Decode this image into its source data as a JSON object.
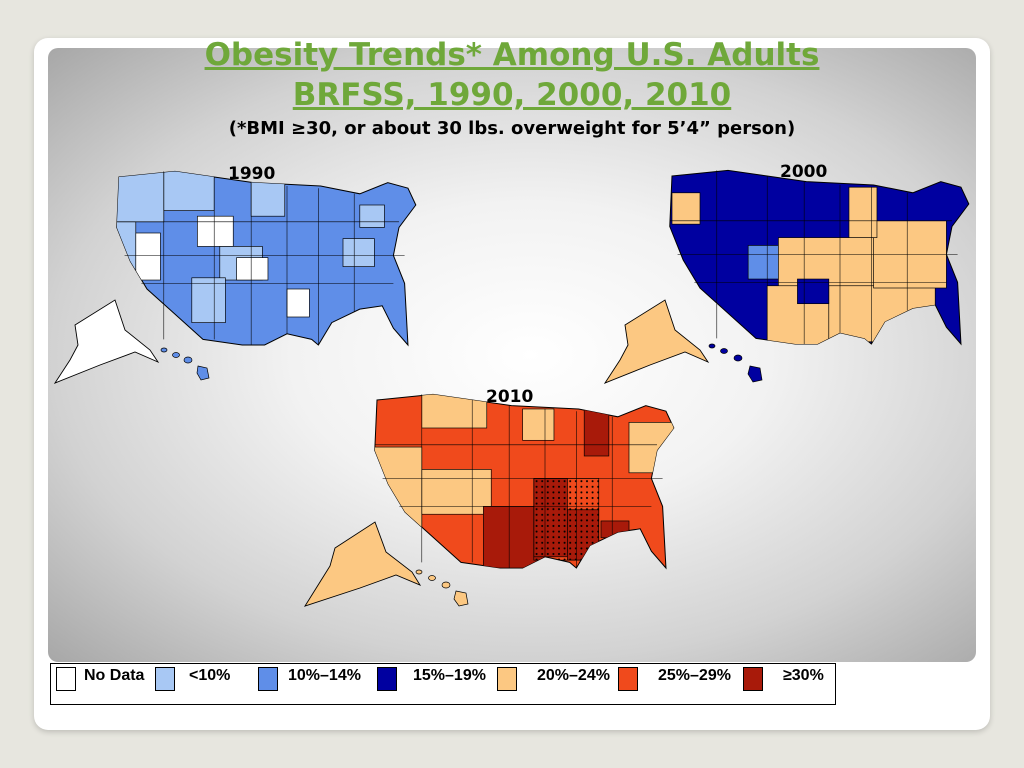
{
  "title": {
    "line1": "Obesity Trends* Among U.S. Adults",
    "line2": "BRFSS, 1990, 2000, 2010",
    "subtitle": "(*BMI ≥30, or about 30 lbs. overweight for 5’4” person)"
  },
  "colors": {
    "no_data": "#ffffff",
    "lt10": "#a8c8f4",
    "b10_14": "#5f8ee8",
    "b15_19": "#0000a0",
    "b20_24": "#fcc882",
    "b25_29": "#f04a1c",
    "ge30": "#a81a0a"
  },
  "maps": [
    {
      "year": "1990",
      "category_colors": [
        "#a8c8f4",
        "#5f8ee8",
        "#ffffff"
      ]
    },
    {
      "year": "2000",
      "category_colors": [
        "#0000a0",
        "#fcc882",
        "#5f8ee8"
      ]
    },
    {
      "year": "2010",
      "category_colors": [
        "#f04a1c",
        "#fcc882",
        "#a81a0a"
      ]
    }
  ],
  "legend": [
    {
      "label": "No Data",
      "color": "#ffffff"
    },
    {
      "label": "<10%",
      "color": "#a8c8f4"
    },
    {
      "label": "10%–14%",
      "color": "#5f8ee8"
    },
    {
      "label": "15%–19%",
      "color": "#0000a0"
    },
    {
      "label": "20%–24%",
      "color": "#fcc882"
    },
    {
      "label": "25%–29%",
      "color": "#f04a1c"
    },
    {
      "label": "≥30%",
      "color": "#a81a0a"
    }
  ]
}
